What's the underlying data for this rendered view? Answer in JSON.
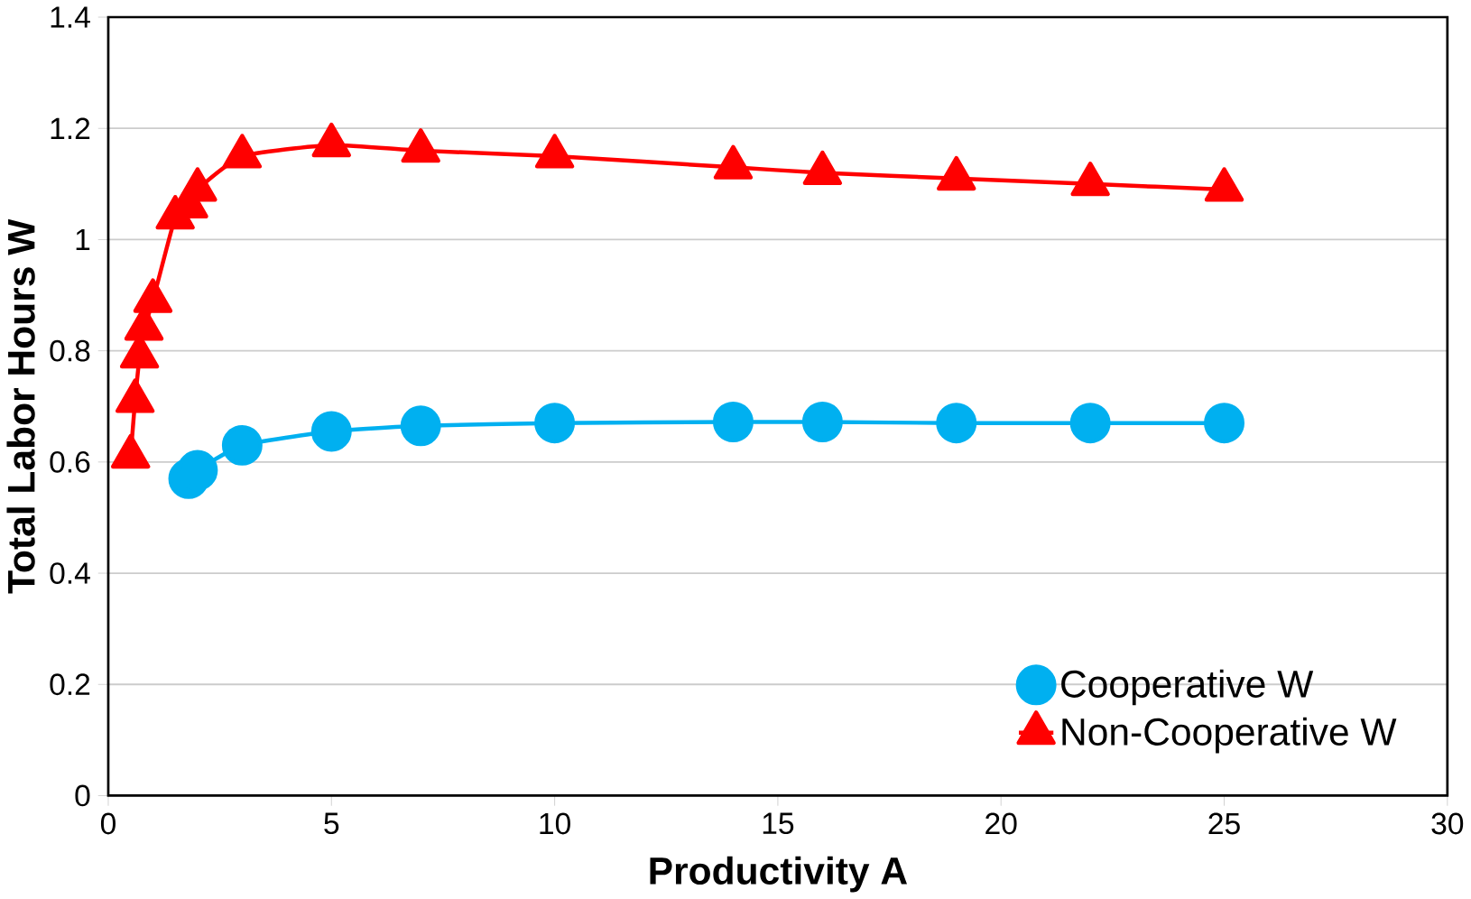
{
  "chart_data": {
    "type": "line",
    "xlabel": "Productivity A",
    "ylabel": "Total Labor Hours W",
    "xlim": [
      0,
      30
    ],
    "xticks": [
      0,
      5,
      10,
      15,
      20,
      25,
      30
    ],
    "ylim": [
      0,
      1.4
    ],
    "yticks": [
      0,
      0.2,
      0.4,
      0.6,
      0.8,
      1,
      1.2,
      1.4
    ],
    "grid": "y",
    "legend": "bottom right",
    "series": [
      {
        "name": "Cooperative W",
        "color": "#00b0f0",
        "marker": "circle",
        "x": [
          1.8,
          2,
          3,
          5,
          7,
          10,
          14,
          16,
          19,
          22,
          25
        ],
        "values": [
          0.57,
          0.585,
          0.63,
          0.655,
          0.665,
          0.67,
          0.672,
          0.672,
          0.67,
          0.67,
          0.67
        ]
      },
      {
        "name": "Non-Cooperative W",
        "color": "#ff0000",
        "marker": "triangle",
        "x": [
          0.5,
          0.6,
          0.7,
          0.8,
          1,
          1.5,
          1.8,
          2,
          3,
          5,
          7,
          10,
          14,
          16,
          19,
          22,
          25
        ],
        "values": [
          0.61,
          0.71,
          0.79,
          0.84,
          0.89,
          1.04,
          1.06,
          1.09,
          1.15,
          1.17,
          1.16,
          1.15,
          1.13,
          1.12,
          1.11,
          1.1,
          1.09
        ]
      }
    ]
  }
}
